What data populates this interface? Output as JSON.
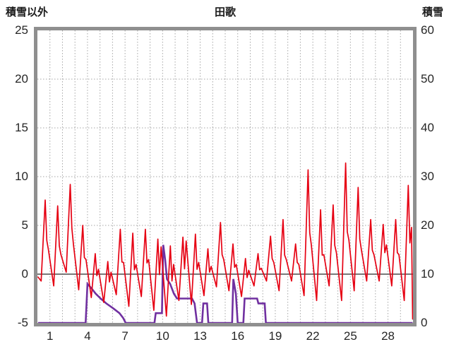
{
  "chart": {
    "left_axis_title": "積雪以外",
    "title": "田歌",
    "right_axis_title": "積雪"
  },
  "chart_data": {
    "type": "line",
    "title": "田歌",
    "grid": true,
    "legend": "none",
    "left_axis": {
      "label": "積雪以外",
      "range": [
        -5,
        25
      ],
      "ticks": [
        25,
        20,
        15,
        10,
        5,
        0,
        -5
      ]
    },
    "right_axis": {
      "label": "積雪",
      "range": [
        0,
        60
      ],
      "ticks": [
        60,
        50,
        40,
        30,
        20,
        10,
        0
      ]
    },
    "x_axis": {
      "range": [
        0,
        30
      ],
      "ticks": [
        1,
        4,
        7,
        10,
        13,
        16,
        19,
        22,
        25,
        28
      ],
      "gridline_every_day": true
    },
    "colors": {
      "red_series": "#e60012",
      "purple_series": "#7030a0",
      "grid": "#a6a6a6",
      "zero_line": "#4d4d4d",
      "frame": "#8f8f8f"
    },
    "series": [
      {
        "name": "積雪以外",
        "axis": "left",
        "color_key": "red_series",
        "start": [
          0.05,
          -0.3
        ],
        "end": [
          29.97,
          -4.6
        ],
        "days": [
          {
            "t": -0.7,
            "p": 7.6,
            "p2": 2.5
          },
          {
            "t": -1.2,
            "p": 7.0,
            "p2": 2.0
          },
          {
            "t": 0.2,
            "p": 9.2,
            "p2": 3.0
          },
          {
            "t": -1.6,
            "p": 5.0,
            "p2": 1.5
          },
          {
            "t": -2.4,
            "p": 2.1,
            "p2": 0.5
          },
          {
            "t": -2.9,
            "p": 1.3,
            "p2": 0.2
          },
          {
            "t": -2.1,
            "p": 4.6,
            "p2": 1.2
          },
          {
            "t": -3.3,
            "p": 4.2,
            "p2": 1.0
          },
          {
            "t": -2.3,
            "p": 4.6,
            "p2": 1.5
          },
          {
            "t": -3.7,
            "p": 3.6,
            "p2": 2.8
          },
          {
            "t": -4.3,
            "p": 2.9,
            "p2": 1.0
          },
          {
            "t": -2.7,
            "p": 3.8,
            "p2": 3.4
          },
          {
            "t": -3.1,
            "p": 4.1,
            "p2": 1.2
          },
          {
            "t": -2.2,
            "p": 2.6,
            "p2": 0.8
          },
          {
            "t": -1.3,
            "p": 5.3,
            "p2": 1.5
          },
          {
            "t": -1.7,
            "p": 3.1,
            "p2": 1.0
          },
          {
            "t": -2.3,
            "p": 1.6,
            "p2": 0.4
          },
          {
            "t": -1.2,
            "p": 2.1,
            "p2": 0.6
          },
          {
            "t": -0.7,
            "p": 3.9,
            "p2": 1.2
          },
          {
            "t": -1.7,
            "p": 5.6,
            "p2": 1.5
          },
          {
            "t": -0.7,
            "p": 3.1,
            "p2": 1.0
          },
          {
            "t": -2.2,
            "p": 10.7,
            "p2": 3.0
          },
          {
            "t": -2.7,
            "p": 6.6,
            "p2": 2.0
          },
          {
            "t": -1.2,
            "p": 7.1,
            "p2": 2.2
          },
          {
            "t": -2.7,
            "p": 11.4,
            "p2": 3.5
          },
          {
            "t": -1.7,
            "p": 8.9,
            "p2": 2.5
          },
          {
            "t": -0.7,
            "p": 5.6,
            "p2": 2.0
          },
          {
            "t": -0.7,
            "p": 5.1,
            "p2": 3.0
          },
          {
            "t": -1.2,
            "p": 5.6,
            "p2": 2.0
          },
          {
            "t": -2.7,
            "p": 9.1,
            "p2": 4.8
          }
        ]
      },
      {
        "name": "積雪",
        "axis": "right",
        "color_key": "purple_series",
        "points": [
          [
            0.05,
            0
          ],
          [
            3.85,
            0
          ],
          [
            4.0,
            8
          ],
          [
            4.35,
            7
          ],
          [
            4.65,
            6
          ],
          [
            5.05,
            5
          ],
          [
            5.5,
            4
          ],
          [
            6.05,
            3
          ],
          [
            6.55,
            2
          ],
          [
            6.85,
            1
          ],
          [
            7.05,
            0
          ],
          [
            9.35,
            0
          ],
          [
            9.45,
            2
          ],
          [
            9.95,
            2
          ],
          [
            10.05,
            16
          ],
          [
            10.2,
            13
          ],
          [
            10.35,
            9
          ],
          [
            10.6,
            8
          ],
          [
            10.9,
            6
          ],
          [
            11.15,
            5
          ],
          [
            12.35,
            5
          ],
          [
            12.55,
            4
          ],
          [
            12.75,
            0
          ],
          [
            13.15,
            0
          ],
          [
            13.25,
            4
          ],
          [
            13.55,
            4
          ],
          [
            13.65,
            0
          ],
          [
            15.55,
            0
          ],
          [
            15.65,
            9
          ],
          [
            15.85,
            6
          ],
          [
            16.0,
            0
          ],
          [
            16.45,
            0
          ],
          [
            16.55,
            5
          ],
          [
            17.55,
            5
          ],
          [
            17.65,
            4
          ],
          [
            18.15,
            4
          ],
          [
            18.25,
            0
          ],
          [
            29.97,
            0
          ]
        ]
      }
    ]
  }
}
